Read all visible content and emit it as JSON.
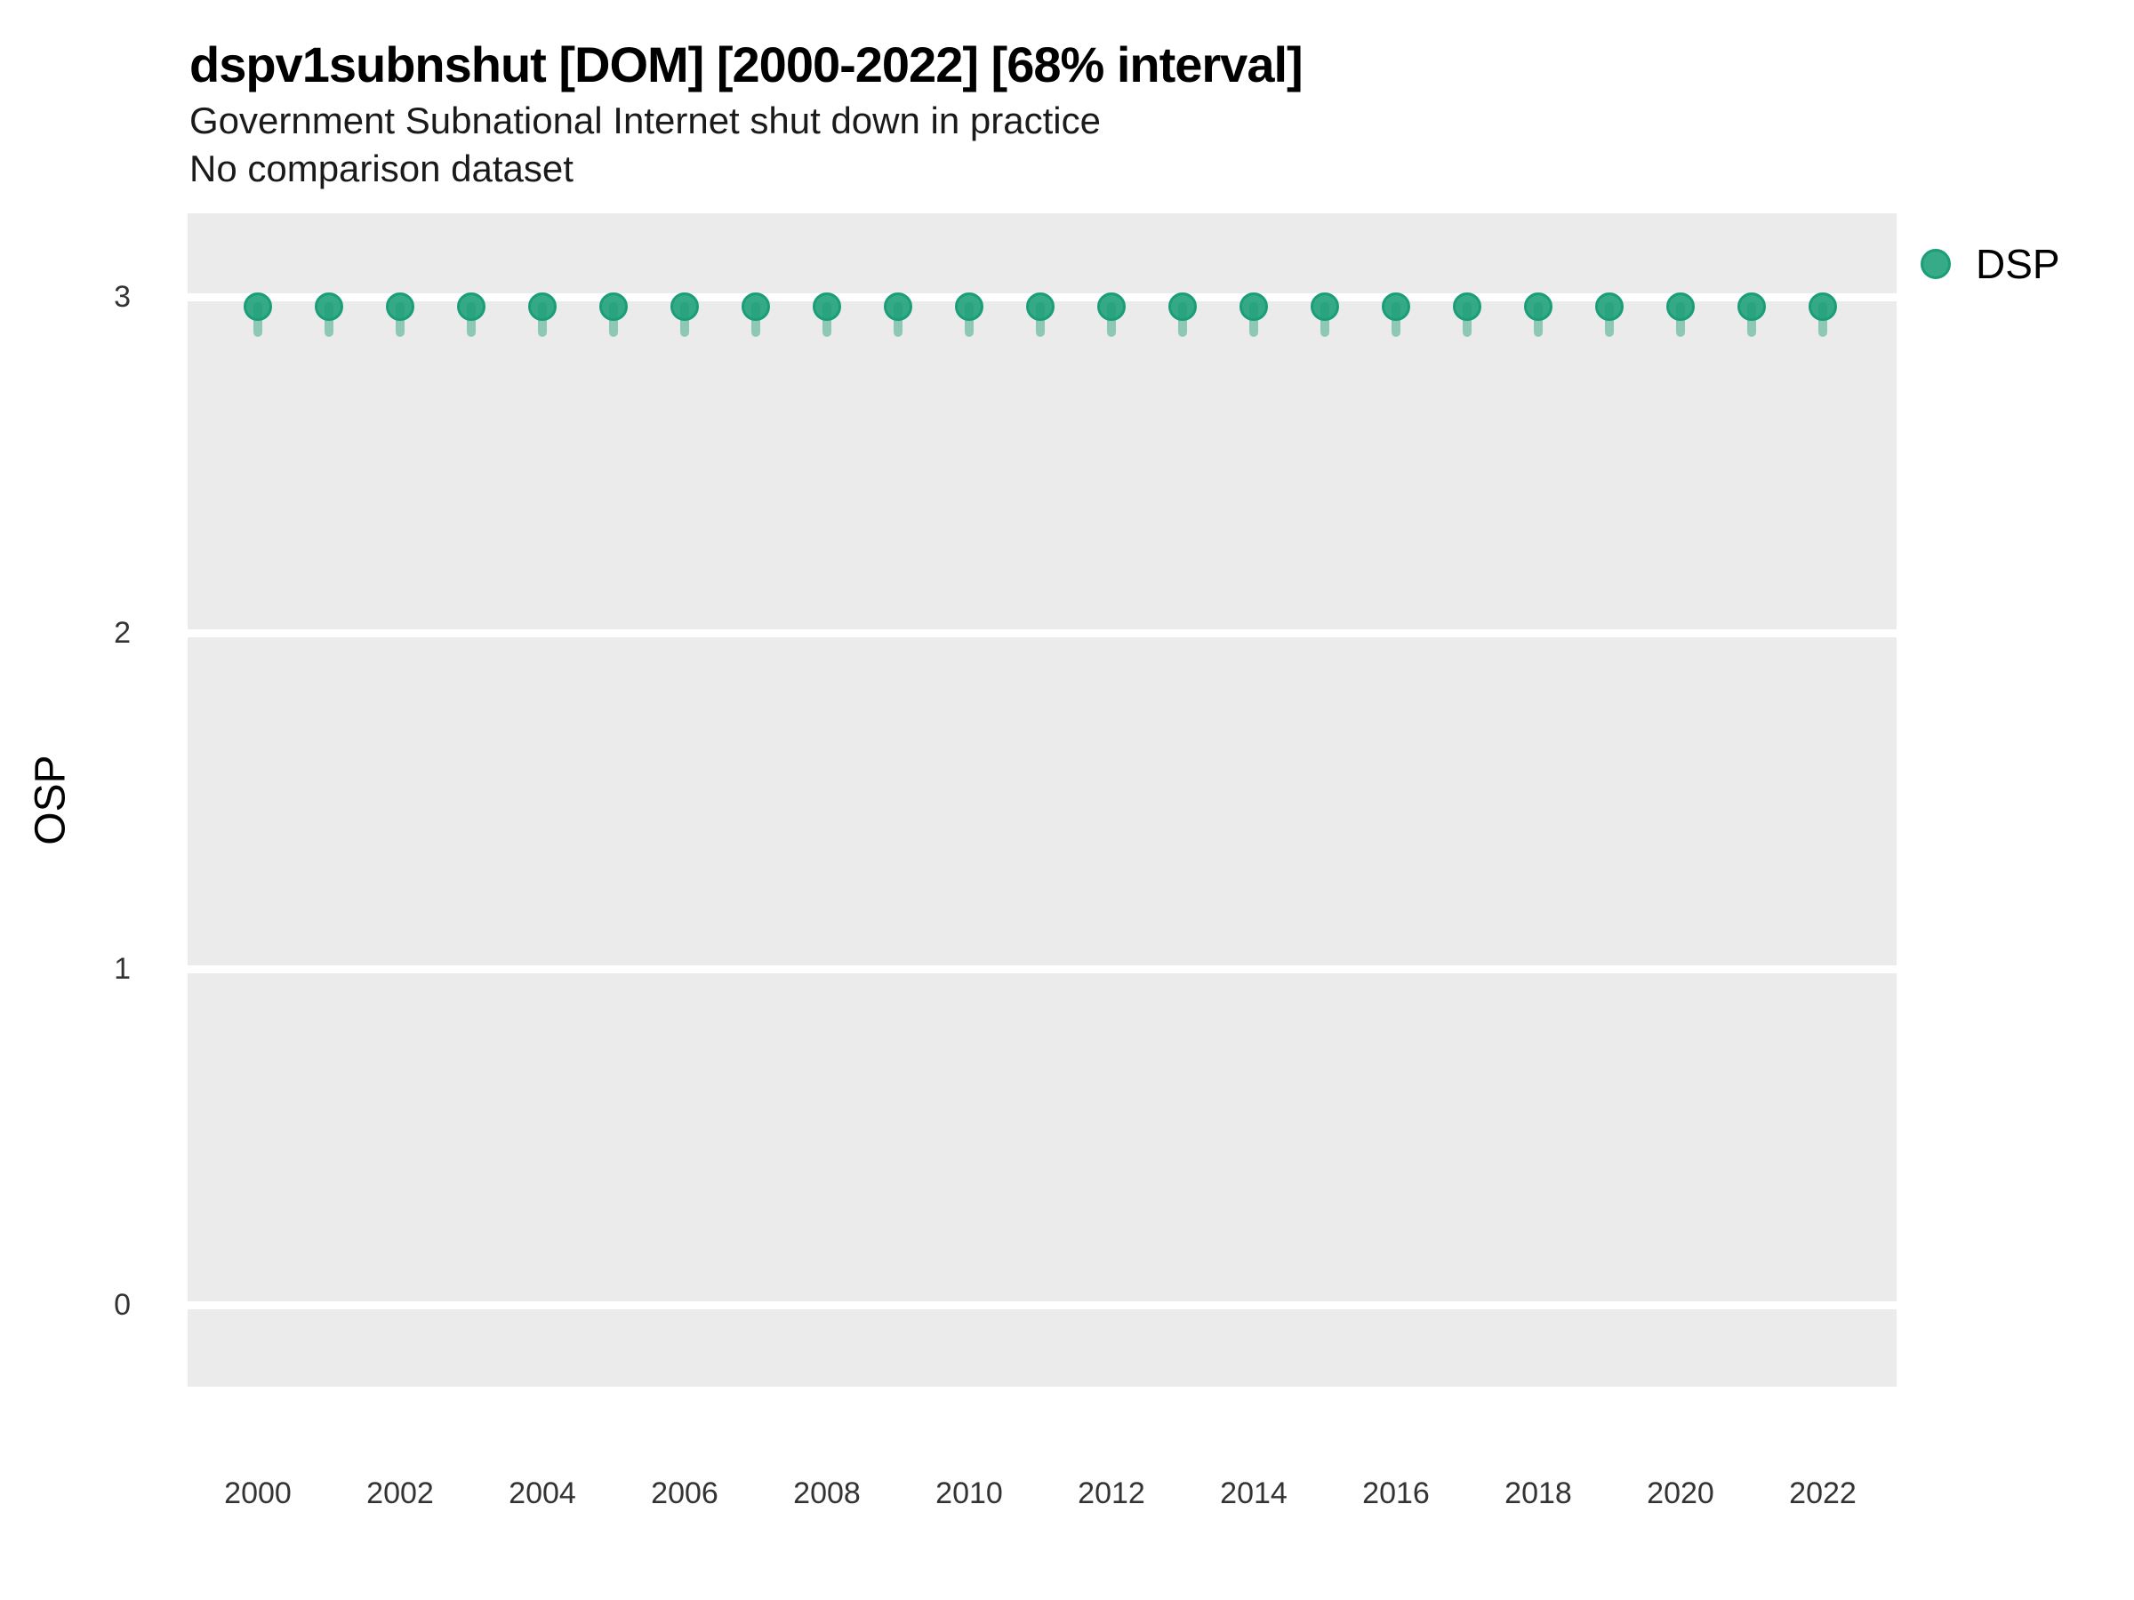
{
  "header": {
    "title": "dspv1subnshut [DOM] [2000-2022] [68% interval]",
    "subtitle": "Government Subnational Internet shut down in practice",
    "note": "No comparison dataset"
  },
  "legend": {
    "label": "DSP"
  },
  "colors": {
    "series": "#1B9E77",
    "series_fill": "rgba(27,158,119,0.88)",
    "series_ring": "rgba(27,158,119,1)",
    "interval": "rgba(27,158,119,0.45)",
    "panel_bg": "#EBEBEB",
    "gridline": "#FFFFFF",
    "text": "#000000"
  },
  "chart_data": {
    "type": "scatter",
    "title": "dspv1subnshut [DOM] [2000-2022] [68% interval]",
    "subtitle": "Government Subnational Internet shut down in practice",
    "note": "No comparison dataset",
    "xlabel": "",
    "ylabel": "OSP",
    "xlim": [
      1999,
      2023
    ],
    "ylim": [
      -0.25,
      3.25
    ],
    "grid": "horizontal-major-only",
    "legend_position": "right-top",
    "x_ticks": [
      2000,
      2002,
      2004,
      2006,
      2008,
      2010,
      2012,
      2014,
      2016,
      2018,
      2020,
      2022
    ],
    "y_ticks": [
      0,
      1,
      2,
      3
    ],
    "series": [
      {
        "name": "DSP",
        "x": [
          2000,
          2001,
          2002,
          2003,
          2004,
          2005,
          2006,
          2007,
          2008,
          2009,
          2010,
          2011,
          2012,
          2013,
          2014,
          2015,
          2016,
          2017,
          2018,
          2019,
          2020,
          2021,
          2022
        ],
        "y": [
          2.97,
          2.97,
          2.97,
          2.97,
          2.97,
          2.97,
          2.97,
          2.97,
          2.97,
          2.97,
          2.97,
          2.97,
          2.97,
          2.97,
          2.97,
          2.97,
          2.97,
          2.97,
          2.97,
          2.97,
          2.97,
          2.97,
          2.97
        ],
        "interval68_low": [
          2.9,
          2.9,
          2.9,
          2.9,
          2.9,
          2.9,
          2.9,
          2.9,
          2.9,
          2.9,
          2.9,
          2.9,
          2.9,
          2.9,
          2.9,
          2.9,
          2.9,
          2.9,
          2.9,
          2.9,
          2.9,
          2.9,
          2.9
        ],
        "interval68_high": [
          2.99,
          2.99,
          2.99,
          2.99,
          2.99,
          2.99,
          2.99,
          2.99,
          2.99,
          2.99,
          2.99,
          2.99,
          2.99,
          2.99,
          2.99,
          2.99,
          2.99,
          2.99,
          2.99,
          2.99,
          2.99,
          2.99,
          2.99
        ]
      }
    ]
  }
}
